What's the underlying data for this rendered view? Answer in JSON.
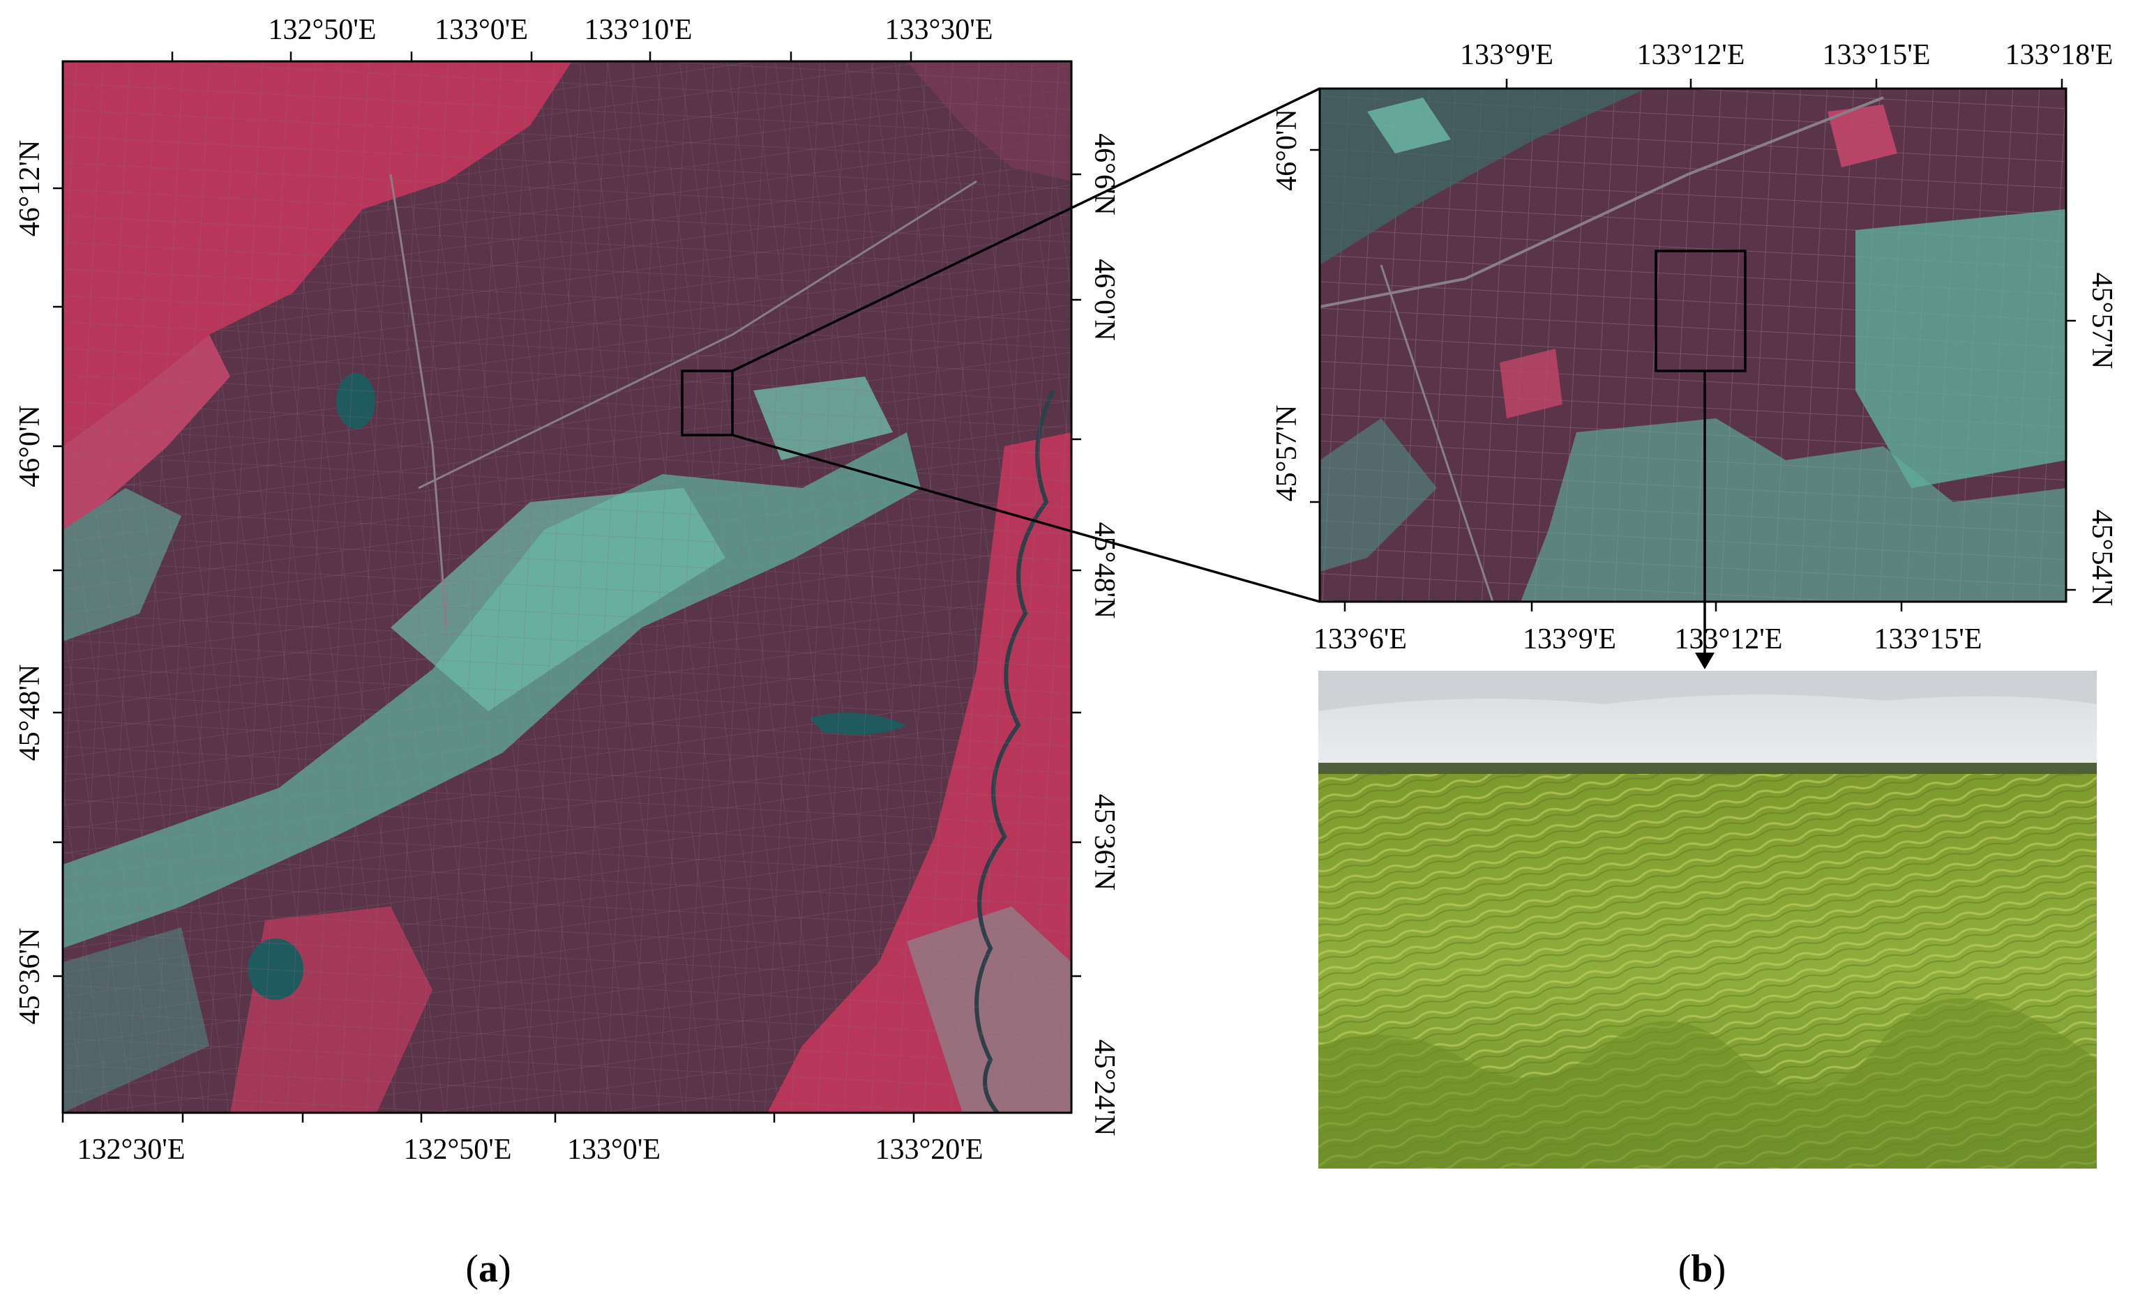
{
  "panel_a": {
    "label_letter": "a",
    "top_lon_ticks": [
      "132°50'E",
      "133°0'E",
      "133°10'E",
      "133°30'E"
    ],
    "bottom_lon_ticks": [
      "132°30'E",
      "132°50'E",
      "133°0'E",
      "133°20'E"
    ],
    "left_lat_ticks": [
      "46°12'N",
      "46°0'N",
      "45°48'N",
      "45°36'N"
    ],
    "right_lat_ticks": [
      "46°6'N",
      "46°0'N",
      "45°48'N",
      "45°36'N",
      "45°24'N"
    ]
  },
  "panel_b": {
    "label_letter": "b",
    "top_lon_ticks": [
      "133°9'E",
      "133°12'E",
      "133°15'E",
      "133°18'E"
    ],
    "bottom_lon_ticks": [
      "133°6'E",
      "133°9'E",
      "133°12'E",
      "133°15'E"
    ],
    "left_lat_ticks": [
      "46°0'N",
      "45°57'N"
    ],
    "right_lat_ticks": [
      "45°57'N",
      "45°54'N"
    ]
  },
  "colors": {
    "vegetation_red": "#b8365a",
    "cropland_dark": "#5a3448",
    "bare_cyan": "#5fae9c",
    "water": "#1f5a5e",
    "rice_green": "#8fa83a",
    "sky": "#e2e4e6"
  }
}
